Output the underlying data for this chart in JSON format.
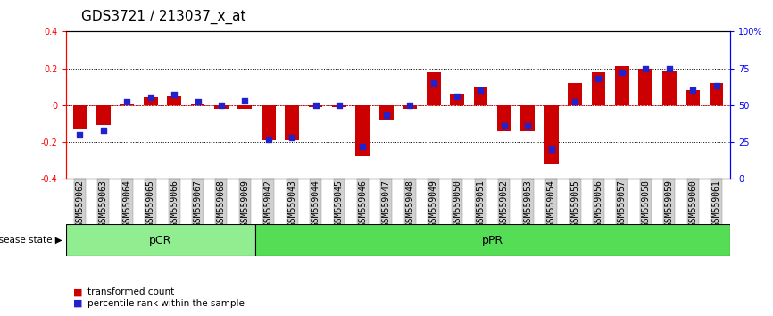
{
  "title": "GDS3721 / 213037_x_at",
  "samples": [
    "GSM559062",
    "GSM559063",
    "GSM559064",
    "GSM559065",
    "GSM559066",
    "GSM559067",
    "GSM559068",
    "GSM559069",
    "GSM559042",
    "GSM559043",
    "GSM559044",
    "GSM559045",
    "GSM559046",
    "GSM559047",
    "GSM559048",
    "GSM559049",
    "GSM559050",
    "GSM559051",
    "GSM559052",
    "GSM559053",
    "GSM559054",
    "GSM559055",
    "GSM559056",
    "GSM559057",
    "GSM559058",
    "GSM559059",
    "GSM559060",
    "GSM559061"
  ],
  "transformed_count": [
    -0.13,
    -0.11,
    0.01,
    0.04,
    0.05,
    0.01,
    -0.02,
    -0.02,
    -0.19,
    -0.19,
    -0.01,
    -0.01,
    -0.28,
    -0.08,
    -0.02,
    0.18,
    0.06,
    0.1,
    -0.14,
    -0.14,
    -0.32,
    0.12,
    0.18,
    0.21,
    0.2,
    0.19,
    0.08,
    0.12
  ],
  "percentile_rank": [
    30,
    33,
    52,
    55,
    57,
    52,
    50,
    53,
    27,
    28,
    50,
    50,
    22,
    43,
    50,
    65,
    56,
    60,
    36,
    36,
    20,
    52,
    68,
    72,
    75,
    75,
    60,
    63
  ],
  "groups": [
    {
      "label": "pCR",
      "start": 0,
      "end": 8,
      "color": "#90EE90"
    },
    {
      "label": "pPR",
      "start": 8,
      "end": 28,
      "color": "#55DD55"
    }
  ],
  "ylim": [
    -0.4,
    0.4
  ],
  "yticks_left": [
    -0.4,
    -0.2,
    0.0,
    0.2,
    0.4
  ],
  "yticks_right": [
    0,
    25,
    50,
    75,
    100
  ],
  "bar_color": "#CC0000",
  "dot_color": "#2222CC",
  "tick_fontsize": 7,
  "label_fontsize": 8,
  "title_fontsize": 11
}
